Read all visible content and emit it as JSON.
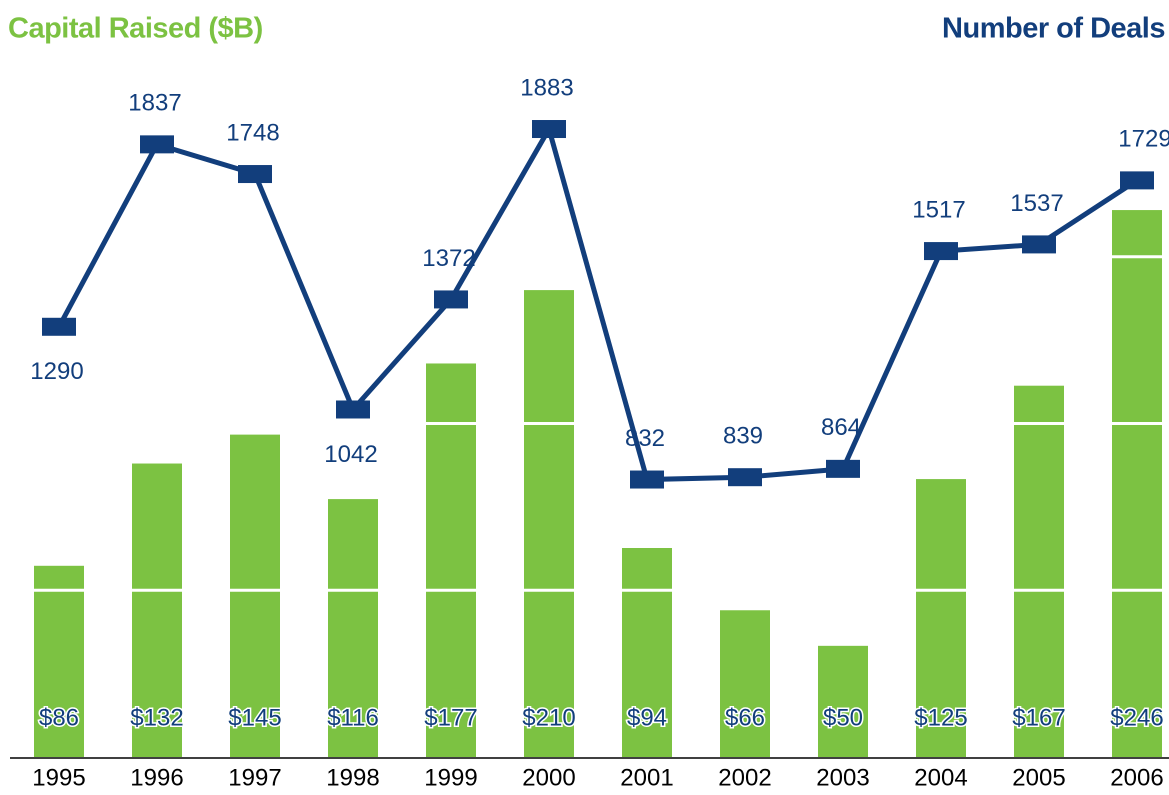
{
  "chart_data": {
    "type": "bar-line",
    "title": "Capital Raised ($B)",
    "y2_title": "Number of Deals",
    "categories": [
      "1995",
      "1996",
      "1997",
      "1998",
      "1999",
      "2000",
      "2001",
      "2002",
      "2003",
      "2004",
      "2005",
      "2006"
    ],
    "ylim": [
      0,
      300
    ],
    "yticks": [
      75,
      150,
      225
    ],
    "grid": true,
    "y2lim": [
      0,
      2000
    ],
    "series": [
      {
        "name": "Capital Raised ($B)",
        "type": "bar",
        "color": "#7cc242",
        "values": [
          86,
          132,
          145,
          116,
          177,
          210,
          94,
          66,
          50,
          125,
          167,
          246
        ],
        "value_labels": [
          "$86",
          "$132",
          "$145",
          "$116",
          "$177",
          "$210",
          "$94",
          "$66",
          "$50",
          "$125",
          "$167",
          "$246"
        ]
      },
      {
        "name": "Number of Deals",
        "type": "line",
        "axis": "y2",
        "color": "#123e7c",
        "values": [
          1290,
          1837,
          1748,
          1042,
          1372,
          1883,
          832,
          839,
          864,
          1517,
          1537,
          1729
        ]
      }
    ]
  }
}
